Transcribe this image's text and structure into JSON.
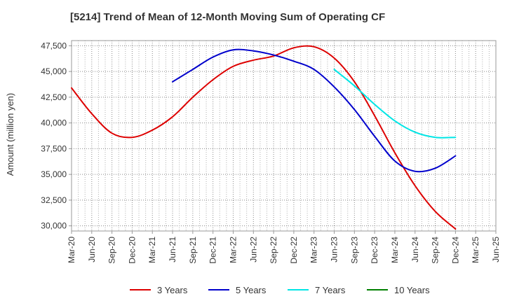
{
  "chart_data": {
    "type": "line",
    "title": "[5214]  Trend of Mean of 12-Month Moving Sum of Operating CF",
    "xlabel": "",
    "ylabel": "Amount (million yen)",
    "ylim": [
      29500,
      48000
    ],
    "yticks": [
      30000,
      32500,
      35000,
      37500,
      40000,
      42500,
      45000,
      47500
    ],
    "ytick_labels": [
      "30,000",
      "32,500",
      "35,000",
      "37,500",
      "40,000",
      "42,500",
      "45,000",
      "47,500"
    ],
    "categories": [
      "Mar-20",
      "Jun-20",
      "Sep-20",
      "Dec-20",
      "Mar-21",
      "Jun-21",
      "Sep-21",
      "Dec-21",
      "Mar-22",
      "Jun-22",
      "Sep-22",
      "Dec-22",
      "Mar-23",
      "Jun-23",
      "Sep-23",
      "Dec-23",
      "Mar-24",
      "Jun-24",
      "Sep-24",
      "Dec-24",
      "Mar-25",
      "Jun-25"
    ],
    "grid": true,
    "legend_position": "bottom",
    "series": [
      {
        "name": "3 Years",
        "color": "#dd0000",
        "values": [
          43400,
          40900,
          39000,
          38600,
          39300,
          40600,
          42500,
          44200,
          45500,
          46100,
          46500,
          47300,
          47400,
          46300,
          44000,
          40700,
          37100,
          33900,
          31400,
          29700,
          null,
          null
        ]
      },
      {
        "name": "5 Years",
        "color": "#0000cc",
        "values": [
          null,
          null,
          null,
          null,
          null,
          44000,
          45200,
          46400,
          47100,
          47000,
          46600,
          46000,
          45200,
          43500,
          41300,
          38700,
          36300,
          35300,
          35600,
          36800,
          null,
          null
        ]
      },
      {
        "name": "7 Years",
        "color": "#00e5e5",
        "values": [
          null,
          null,
          null,
          null,
          null,
          null,
          null,
          null,
          null,
          null,
          null,
          null,
          null,
          45200,
          43600,
          41800,
          40200,
          39100,
          38600,
          38600,
          null,
          null
        ]
      },
      {
        "name": "10 Years",
        "color": "#008000",
        "values": [
          null,
          null,
          null,
          null,
          null,
          null,
          null,
          null,
          null,
          null,
          null,
          null,
          null,
          null,
          null,
          null,
          null,
          null,
          null,
          null,
          null,
          null
        ]
      }
    ]
  }
}
